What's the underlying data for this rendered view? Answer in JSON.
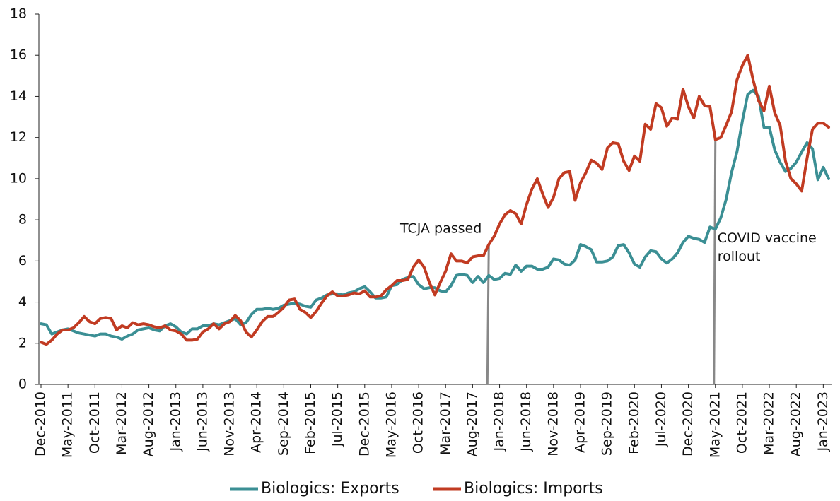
{
  "chart_data": {
    "type": "line",
    "categories": [
      "Dec-2010",
      null,
      null,
      null,
      null,
      "May-2011",
      null,
      null,
      null,
      null,
      "Oct-2011",
      null,
      null,
      null,
      null,
      "Mar-2012",
      null,
      null,
      null,
      null,
      "Aug-2012",
      null,
      null,
      null,
      null,
      "Jan-2013",
      null,
      null,
      null,
      null,
      "Jun-2013",
      null,
      null,
      null,
      null,
      "Nov-2013",
      null,
      null,
      null,
      null,
      "Apr-2014",
      null,
      null,
      null,
      null,
      "Sep-2014",
      null,
      null,
      null,
      null,
      "Feb-2015",
      null,
      null,
      null,
      null,
      "Jul-2015",
      null,
      null,
      null,
      null,
      "Dec-2015",
      null,
      null,
      null,
      null,
      "May-2016",
      null,
      null,
      null,
      null,
      "Oct-2016",
      null,
      null,
      null,
      null,
      "Mar-2017",
      null,
      null,
      null,
      null,
      "Aug-2017",
      null,
      null,
      null,
      null,
      "Jan-2018",
      null,
      null,
      null,
      null,
      "Jun-2018",
      null,
      null,
      null,
      null,
      "Nov-2018",
      null,
      null,
      null,
      null,
      "Apr-2019",
      null,
      null,
      null,
      null,
      "Sep-2019",
      null,
      null,
      null,
      null,
      "Feb-2020",
      null,
      null,
      null,
      null,
      "Jul-2020",
      null,
      null,
      null,
      null,
      "Dec-2020",
      null,
      null,
      null,
      null,
      "May-2021",
      null,
      null,
      null,
      null,
      "Oct-2021",
      null,
      null,
      null,
      null,
      "Mar-2022",
      null,
      null,
      null,
      null,
      "Aug-2022",
      null,
      null,
      null,
      null,
      "Jan-2023",
      null
    ],
    "series": [
      {
        "name": "Biologics: Exports",
        "color": "#3b8f94",
        "values": [
          2.95,
          2.9,
          2.45,
          2.55,
          2.65,
          2.7,
          2.6,
          2.5,
          2.45,
          2.4,
          2.35,
          2.45,
          2.45,
          2.35,
          2.3,
          2.2,
          2.35,
          2.45,
          2.65,
          2.7,
          2.75,
          2.65,
          2.6,
          2.85,
          2.95,
          2.8,
          2.55,
          2.45,
          2.7,
          2.7,
          2.85,
          2.85,
          2.95,
          2.9,
          3.0,
          3.1,
          3.2,
          2.9,
          3.0,
          3.4,
          3.65,
          3.65,
          3.7,
          3.65,
          3.7,
          3.85,
          3.9,
          3.95,
          3.9,
          3.8,
          3.75,
          4.1,
          4.2,
          4.35,
          4.4,
          4.4,
          4.35,
          4.45,
          4.5,
          4.65,
          4.75,
          4.5,
          4.2,
          4.2,
          4.25,
          4.8,
          4.85,
          5.1,
          5.2,
          5.25,
          4.85,
          4.65,
          4.7,
          4.7,
          4.55,
          4.5,
          4.8,
          5.3,
          5.35,
          5.3,
          4.95,
          5.25,
          4.95,
          5.3,
          5.1,
          5.15,
          5.4,
          5.35,
          5.8,
          5.5,
          5.75,
          5.75,
          5.6,
          5.6,
          5.7,
          6.1,
          6.05,
          5.85,
          5.8,
          6.05,
          6.8,
          6.7,
          6.55,
          5.95,
          5.95,
          6.0,
          6.2,
          6.75,
          6.8,
          6.4,
          5.85,
          5.7,
          6.2,
          6.5,
          6.45,
          6.1,
          5.9,
          6.1,
          6.4,
          6.9,
          7.2,
          7.1,
          7.05,
          6.9,
          7.65,
          7.55,
          8.1,
          9.0,
          10.3,
          11.3,
          12.8,
          14.1,
          14.3,
          14.0,
          12.5,
          12.5,
          11.4,
          10.8,
          10.35,
          10.5,
          10.8,
          11.3,
          11.75,
          11.45,
          9.95,
          10.55,
          10.0
        ]
      },
      {
        "name": "Biologics: Imports",
        "color": "#c13b22",
        "values": [
          2.05,
          1.95,
          2.15,
          2.45,
          2.65,
          2.65,
          2.75,
          3.0,
          3.3,
          3.05,
          2.95,
          3.2,
          3.25,
          3.2,
          2.65,
          2.85,
          2.75,
          3.0,
          2.9,
          2.95,
          2.9,
          2.8,
          2.75,
          2.85,
          2.65,
          2.6,
          2.45,
          2.15,
          2.15,
          2.2,
          2.55,
          2.7,
          2.95,
          2.7,
          2.95,
          3.05,
          3.35,
          3.1,
          2.55,
          2.3,
          2.65,
          3.05,
          3.3,
          3.3,
          3.5,
          3.75,
          4.1,
          4.15,
          3.65,
          3.5,
          3.25,
          3.55,
          3.95,
          4.3,
          4.5,
          4.3,
          4.3,
          4.35,
          4.45,
          4.4,
          4.55,
          4.25,
          4.25,
          4.3,
          4.6,
          4.8,
          5.05,
          5.05,
          5.1,
          5.7,
          6.05,
          5.7,
          4.95,
          4.35,
          4.95,
          5.5,
          6.35,
          6.0,
          6.0,
          5.9,
          6.2,
          6.25,
          6.25,
          6.8,
          7.2,
          7.8,
          8.25,
          8.45,
          8.3,
          7.8,
          8.75,
          9.5,
          10.0,
          9.25,
          8.6,
          9.1,
          10.0,
          10.3,
          10.35,
          8.95,
          9.8,
          10.3,
          10.9,
          10.75,
          10.45,
          11.5,
          11.75,
          11.7,
          10.85,
          10.4,
          11.1,
          10.85,
          12.65,
          12.4,
          13.65,
          13.45,
          12.55,
          12.95,
          12.9,
          14.35,
          13.5,
          12.95,
          14.0,
          13.55,
          13.5,
          11.9,
          12.0,
          12.6,
          13.25,
          14.8,
          15.5,
          16.0,
          14.8,
          13.8,
          13.3,
          14.5,
          13.2,
          12.6,
          10.85,
          10.0,
          9.75,
          9.4,
          11.0,
          12.4,
          12.7,
          12.7,
          12.5
        ]
      }
    ],
    "ylim": [
      0,
      18
    ],
    "yticks": [
      0,
      2,
      4,
      6,
      8,
      10,
      12,
      14,
      16,
      18
    ],
    "annotations": [
      {
        "text": [
          "TCJA passed"
        ],
        "x_index": 83
      },
      {
        "text": [
          "COVID vaccine",
          "rollout"
        ],
        "x_index": 125
      }
    ],
    "legend": "bottom"
  }
}
